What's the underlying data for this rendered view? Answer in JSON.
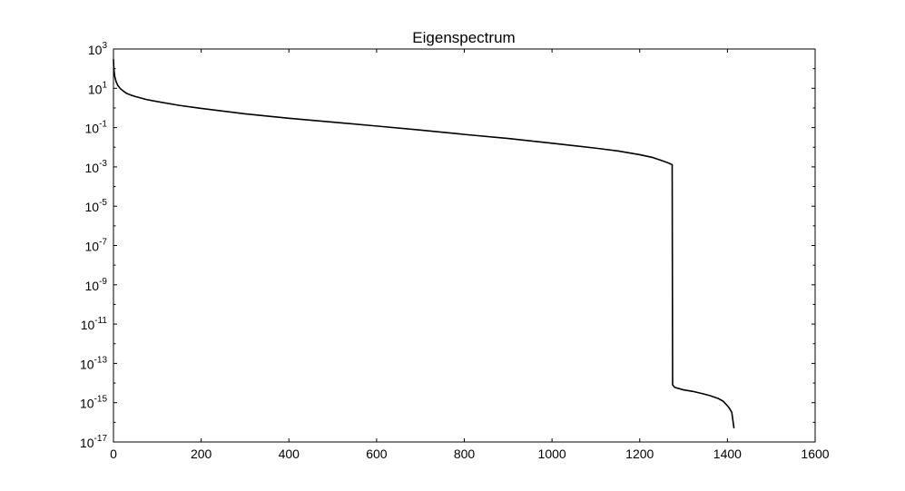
{
  "chart_data": {
    "type": "line",
    "title": "Eigenspectrum",
    "xlabel": "",
    "ylabel": "",
    "xlim": [
      0,
      1600
    ],
    "ylim": [
      1e-17,
      1000.0
    ],
    "yscale": "log",
    "grid": false,
    "x_ticks": [
      {
        "value": 0,
        "label": "0"
      },
      {
        "value": 200,
        "label": "200"
      },
      {
        "value": 400,
        "label": "400"
      },
      {
        "value": 600,
        "label": "600"
      },
      {
        "value": 800,
        "label": "800"
      },
      {
        "value": 1000,
        "label": "1000"
      },
      {
        "value": 1200,
        "label": "1200"
      },
      {
        "value": 1400,
        "label": "1400"
      },
      {
        "value": 1600,
        "label": "1600"
      }
    ],
    "y_ticks": [
      {
        "exponent": 3,
        "base": "10",
        "sup": "3"
      },
      {
        "exponent": 1,
        "base": "10",
        "sup": "1"
      },
      {
        "exponent": -1,
        "base": "10",
        "sup": "-1"
      },
      {
        "exponent": -3,
        "base": "10",
        "sup": "-3"
      },
      {
        "exponent": -5,
        "base": "10",
        "sup": "-5"
      },
      {
        "exponent": -7,
        "base": "10",
        "sup": "-7"
      },
      {
        "exponent": -9,
        "base": "10",
        "sup": "-9"
      },
      {
        "exponent": -11,
        "base": "10",
        "sup": "-11"
      },
      {
        "exponent": -13,
        "base": "10",
        "sup": "-13"
      },
      {
        "exponent": -15,
        "base": "10",
        "sup": "-15"
      },
      {
        "exponent": -17,
        "base": "10",
        "sup": "-17"
      }
    ],
    "series": [
      {
        "color": "#000000",
        "points": [
          [
            0,
            300
          ],
          [
            1,
            90
          ],
          [
            3,
            40
          ],
          [
            6,
            22
          ],
          [
            10,
            14
          ],
          [
            15,
            10
          ],
          [
            20,
            8
          ],
          [
            30,
            5.5
          ],
          [
            40,
            4.5
          ],
          [
            50,
            3.8
          ],
          [
            75,
            2.7
          ],
          [
            100,
            2.1
          ],
          [
            150,
            1.35
          ],
          [
            200,
            0.95
          ],
          [
            300,
            0.5
          ],
          [
            400,
            0.3
          ],
          [
            500,
            0.19
          ],
          [
            600,
            0.12
          ],
          [
            700,
            0.075
          ],
          [
            800,
            0.045
          ],
          [
            900,
            0.028
          ],
          [
            1000,
            0.016
          ],
          [
            1100,
            0.009
          ],
          [
            1150,
            0.0065
          ],
          [
            1200,
            0.0042
          ],
          [
            1230,
            0.003
          ],
          [
            1250,
            0.0021
          ],
          [
            1265,
            0.0016
          ],
          [
            1274,
            0.0013
          ],
          [
            1275,
            8e-15
          ],
          [
            1280,
            6e-15
          ],
          [
            1300,
            4.5e-15
          ],
          [
            1320,
            3.8e-15
          ],
          [
            1340,
            3e-15
          ],
          [
            1360,
            2.3e-15
          ],
          [
            1380,
            1.6e-15
          ],
          [
            1390,
            1.2e-15
          ],
          [
            1400,
            7e-16
          ],
          [
            1405,
            5e-16
          ],
          [
            1410,
            3.2e-16
          ],
          [
            1412,
            1.5e-16
          ],
          [
            1415,
            5e-17
          ]
        ]
      }
    ]
  }
}
